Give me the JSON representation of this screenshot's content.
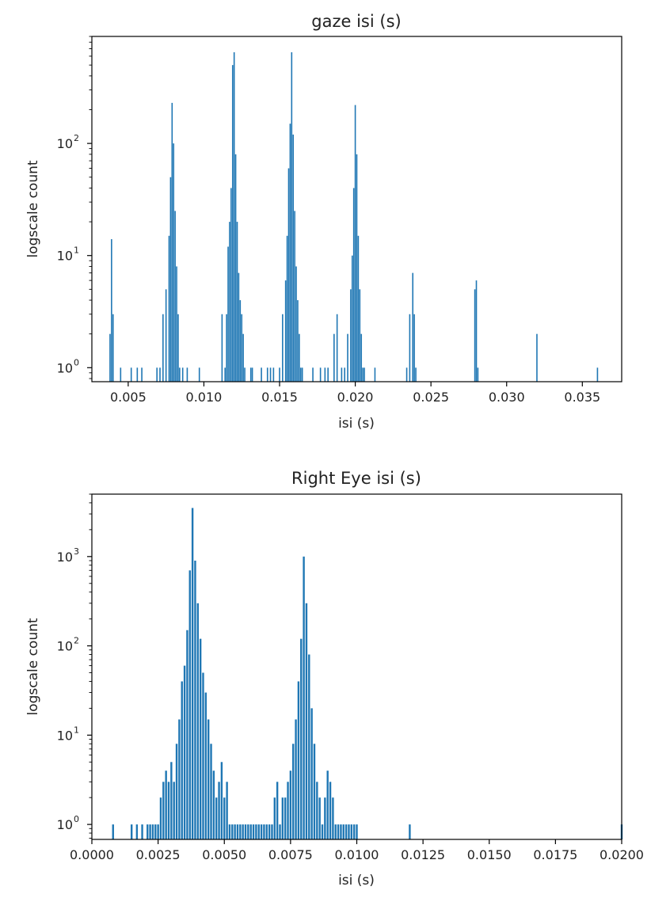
{
  "colors": {
    "bar": "#1f77b4",
    "axis": "#000000",
    "text": "#222222",
    "background": "#ffffff"
  },
  "chart_data": [
    {
      "type": "bar",
      "title": "gaze isi (s)",
      "xlabel": "isi (s)",
      "ylabel": "logscale count",
      "xscale": "linear",
      "yscale": "log",
      "xlim": [
        0.0026,
        0.0376
      ],
      "ylim": [
        0.75,
        900
      ],
      "grid": false,
      "xticks": [
        0.005,
        0.01,
        0.015,
        0.02,
        0.025,
        0.03,
        0.035
      ],
      "xtick_labels": [
        "0.005",
        "0.010",
        "0.015",
        "0.020",
        "0.025",
        "0.030",
        "0.035"
      ],
      "yticks": [
        {
          "value": 1,
          "base": "10",
          "exp": "0"
        },
        {
          "value": 10,
          "base": "10",
          "exp": "1"
        },
        {
          "value": 100,
          "base": "10",
          "exp": "2"
        }
      ],
      "bins": {
        "x": [
          0.0038,
          0.0039,
          0.004,
          0.0045,
          0.0052,
          0.0056,
          0.0059,
          0.0069,
          0.0071,
          0.0073,
          0.0075,
          0.0077,
          0.0078,
          0.0079,
          0.008,
          0.0081,
          0.0082,
          0.0083,
          0.0084,
          0.0086,
          0.0089,
          0.0097,
          0.0112,
          0.0114,
          0.0115,
          0.0116,
          0.0117,
          0.0118,
          0.0119,
          0.012,
          0.0121,
          0.0122,
          0.0123,
          0.0124,
          0.0125,
          0.0126,
          0.0127,
          0.0131,
          0.0132,
          0.0138,
          0.0142,
          0.0144,
          0.0146,
          0.015,
          0.0152,
          0.0154,
          0.0155,
          0.0156,
          0.0157,
          0.0158,
          0.0159,
          0.016,
          0.0161,
          0.0162,
          0.0163,
          0.0164,
          0.0165,
          0.0172,
          0.0177,
          0.018,
          0.0182,
          0.0186,
          0.0188,
          0.0191,
          0.0193,
          0.0195,
          0.0197,
          0.0198,
          0.0199,
          0.02,
          0.0201,
          0.0202,
          0.0203,
          0.0204,
          0.0205,
          0.0206,
          0.0213,
          0.0234,
          0.0236,
          0.0238,
          0.0239,
          0.024,
          0.0279,
          0.028,
          0.0281,
          0.032,
          0.036
        ],
        "counts": [
          2,
          14,
          3,
          1,
          1,
          1,
          1,
          1,
          1,
          3,
          5,
          15,
          50,
          230,
          100,
          25,
          8,
          3,
          1,
          1,
          1,
          1,
          3,
          1,
          3,
          12,
          20,
          40,
          500,
          650,
          80,
          20,
          7,
          4,
          3,
          2,
          1,
          1,
          1,
          1,
          1,
          1,
          1,
          1,
          3,
          6,
          15,
          60,
          150,
          650,
          120,
          25,
          8,
          4,
          2,
          1,
          1,
          1,
          1,
          1,
          1,
          2,
          3,
          1,
          1,
          2,
          5,
          10,
          40,
          220,
          80,
          15,
          5,
          2,
          1,
          1,
          1,
          1,
          3,
          7,
          3,
          1,
          5,
          6,
          1,
          2,
          1
        ]
      }
    },
    {
      "type": "bar",
      "title": "Right Eye isi (s)",
      "xlabel": "isi (s)",
      "ylabel": "logscale count",
      "xscale": "linear",
      "yscale": "log",
      "xlim": [
        0.0,
        0.02
      ],
      "ylim": [
        0.68,
        5000
      ],
      "grid": false,
      "xticks": [
        0.0,
        0.0025,
        0.005,
        0.0075,
        0.01,
        0.0125,
        0.015,
        0.0175,
        0.02
      ],
      "xtick_labels": [
        "0.0000",
        "0.0025",
        "0.0050",
        "0.0075",
        "0.0100",
        "0.0125",
        "0.0150",
        "0.0175",
        "0.0200"
      ],
      "yticks": [
        {
          "value": 1,
          "base": "10",
          "exp": "0"
        },
        {
          "value": 10,
          "base": "10",
          "exp": "1"
        },
        {
          "value": 100,
          "base": "10",
          "exp": "2"
        },
        {
          "value": 1000,
          "base": "10",
          "exp": "3"
        }
      ],
      "bins": {
        "x": [
          0.0008,
          0.0015,
          0.0017,
          0.0019,
          0.0021,
          0.0022,
          0.0023,
          0.0024,
          0.0025,
          0.0026,
          0.0027,
          0.0028,
          0.0029,
          0.003,
          0.0031,
          0.0032,
          0.0033,
          0.0034,
          0.0035,
          0.0036,
          0.0037,
          0.0038,
          0.0039,
          0.004,
          0.0041,
          0.0042,
          0.0043,
          0.0044,
          0.0045,
          0.0046,
          0.0047,
          0.0048,
          0.0049,
          0.005,
          0.0051,
          0.0052,
          0.0053,
          0.0054,
          0.0055,
          0.0056,
          0.0057,
          0.0058,
          0.0059,
          0.006,
          0.0061,
          0.0062,
          0.0063,
          0.0064,
          0.0065,
          0.0066,
          0.0067,
          0.0068,
          0.0069,
          0.007,
          0.0071,
          0.0072,
          0.0073,
          0.0074,
          0.0075,
          0.0076,
          0.0077,
          0.0078,
          0.0079,
          0.008,
          0.0081,
          0.0082,
          0.0083,
          0.0084,
          0.0085,
          0.0086,
          0.0087,
          0.0088,
          0.0089,
          0.009,
          0.0091,
          0.0092,
          0.0093,
          0.0094,
          0.0095,
          0.0096,
          0.0097,
          0.0098,
          0.0099,
          0.01,
          0.012,
          0.02
        ],
        "counts": [
          1,
          1,
          1,
          1,
          1,
          1,
          1,
          1,
          1,
          2,
          3,
          4,
          3,
          5,
          3,
          8,
          15,
          40,
          60,
          150,
          700,
          3500,
          900,
          300,
          120,
          50,
          30,
          15,
          8,
          4,
          2,
          3,
          5,
          2,
          3,
          1,
          1,
          1,
          1,
          1,
          1,
          1,
          1,
          1,
          1,
          1,
          1,
          1,
          1,
          1,
          1,
          1,
          2,
          3,
          1,
          2,
          2,
          3,
          4,
          8,
          15,
          40,
          120,
          1000,
          300,
          80,
          20,
          8,
          3,
          2,
          1,
          2,
          4,
          3,
          2,
          1,
          1,
          1,
          1,
          1,
          1,
          1,
          1,
          1,
          1,
          1
        ]
      }
    }
  ]
}
